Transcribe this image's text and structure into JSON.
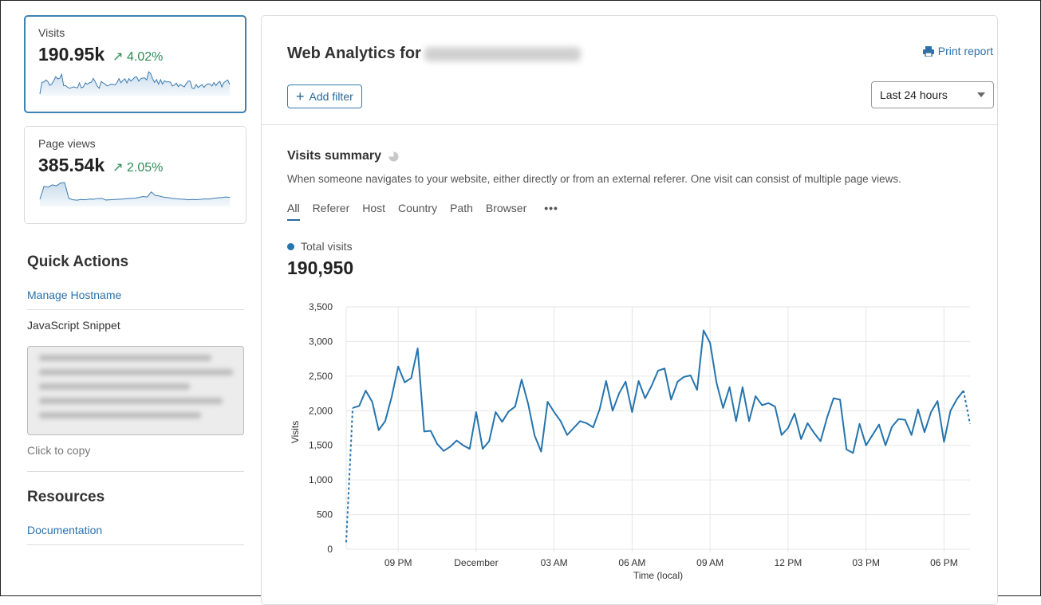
{
  "sidebar": {
    "stats": [
      {
        "label": "Visits",
        "value": "190.95k",
        "change": "4.02%",
        "trend": "up"
      },
      {
        "label": "Page views",
        "value": "385.54k",
        "change": "2.05%",
        "trend": "up"
      }
    ],
    "quick_actions_title": "Quick Actions",
    "manage_hostname": "Manage Hostname",
    "js_snippet_label": "JavaScript Snippet",
    "click_to_copy": "Click to copy",
    "resources_title": "Resources",
    "documentation": "Documentation"
  },
  "header": {
    "title": "Web Analytics for",
    "add_filter": "Add filter",
    "print_report": "Print report",
    "time_range": "Last 24 hours"
  },
  "summary": {
    "title": "Visits summary",
    "description": "When someone navigates to your website, either directly or from an external referer. One visit can consist of multiple page views.",
    "tabs": [
      "All",
      "Referer",
      "Host",
      "Country",
      "Path",
      "Browser"
    ],
    "active_tab": "All",
    "legend": "Total visits",
    "total": "190,950"
  },
  "colors": {
    "accent": "#2574ad",
    "positive": "#2e8b57"
  },
  "pageviews_sparkline": [
    60,
    200,
    190,
    215,
    205,
    235,
    240,
    70,
    55,
    50,
    58,
    55,
    62,
    60,
    68,
    70,
    52,
    55,
    58,
    60,
    62,
    66,
    70,
    72,
    80,
    90,
    85,
    140,
    100,
    95,
    82,
    78,
    70,
    65,
    62,
    60,
    55,
    58,
    56,
    60,
    64,
    62,
    70,
    75,
    78,
    85,
    80
  ],
  "chart_data": {
    "type": "line",
    "xlabel": "Time (local)",
    "ylabel": "Visits",
    "ylim": [
      0,
      3500
    ],
    "yticks": [
      "0",
      "500",
      "1,000",
      "1,500",
      "2,000",
      "2,500",
      "3,000",
      "3,500"
    ],
    "xticks": [
      {
        "label": "09 PM",
        "time": "21:00"
      },
      {
        "label": "December",
        "time": "00:00"
      },
      {
        "label": "03 AM",
        "time": "03:00"
      },
      {
        "label": "06 AM",
        "time": "06:00"
      },
      {
        "label": "09 AM",
        "time": "09:00"
      },
      {
        "label": "12 PM",
        "time": "12:00"
      },
      {
        "label": "03 PM",
        "time": "15:00"
      },
      {
        "label": "06 PM",
        "time": "18:00"
      }
    ],
    "grid": true,
    "series": [
      {
        "name": "Total visits",
        "x": [
          "19:00",
          "19:15",
          "19:30",
          "19:45",
          "20:00",
          "20:15",
          "20:30",
          "20:45",
          "21:00",
          "21:15",
          "21:30",
          "21:45",
          "22:00",
          "22:15",
          "22:30",
          "22:45",
          "23:00",
          "23:15",
          "23:30",
          "23:45",
          "00:00",
          "00:15",
          "00:30",
          "00:45",
          "01:00",
          "01:15",
          "01:30",
          "01:45",
          "02:00",
          "02:15",
          "02:30",
          "02:45",
          "03:00",
          "03:15",
          "03:30",
          "03:45",
          "04:00",
          "04:15",
          "04:30",
          "04:45",
          "05:00",
          "05:15",
          "05:30",
          "05:45",
          "06:00",
          "06:15",
          "06:30",
          "06:45",
          "07:00",
          "07:15",
          "07:30",
          "07:45",
          "08:00",
          "08:15",
          "08:30",
          "08:45",
          "09:00",
          "09:15",
          "09:30",
          "09:45",
          "10:00",
          "10:15",
          "10:30",
          "10:45",
          "11:00",
          "11:15",
          "11:30",
          "11:45",
          "12:00",
          "12:15",
          "12:30",
          "12:45",
          "13:00",
          "13:15",
          "13:30",
          "13:45",
          "14:00",
          "14:15",
          "14:30",
          "14:45",
          "15:00",
          "15:15",
          "15:30",
          "15:45",
          "16:00",
          "16:15",
          "16:30",
          "16:45",
          "17:00",
          "17:15",
          "17:30",
          "17:45",
          "18:00",
          "18:15",
          "18:30",
          "18:45",
          "19:00"
        ],
        "values": [
          100,
          2040,
          2070,
          2290,
          2130,
          1720,
          1850,
          2200,
          2640,
          2410,
          2470,
          2900,
          1700,
          1710,
          1520,
          1420,
          1480,
          1570,
          1500,
          1450,
          1980,
          1450,
          1560,
          1980,
          1840,
          1990,
          2060,
          2450,
          2100,
          1640,
          1410,
          2130,
          1980,
          1850,
          1650,
          1750,
          1850,
          1820,
          1760,
          2020,
          2430,
          2000,
          2250,
          2420,
          1980,
          2430,
          2180,
          2360,
          2580,
          2610,
          2160,
          2420,
          2490,
          2510,
          2300,
          3160,
          2980,
          2400,
          2040,
          2340,
          1850,
          2340,
          1850,
          2210,
          2080,
          2110,
          2060,
          1650,
          1750,
          1960,
          1590,
          1820,
          1680,
          1560,
          1900,
          2180,
          2160,
          1440,
          1390,
          1810,
          1500,
          1650,
          1800,
          1500,
          1770,
          1880,
          1870,
          1650,
          2020,
          1690,
          1980,
          2140,
          1550,
          2000,
          2170,
          2290,
          1810
        ],
        "color": "#2574ad"
      }
    ]
  }
}
